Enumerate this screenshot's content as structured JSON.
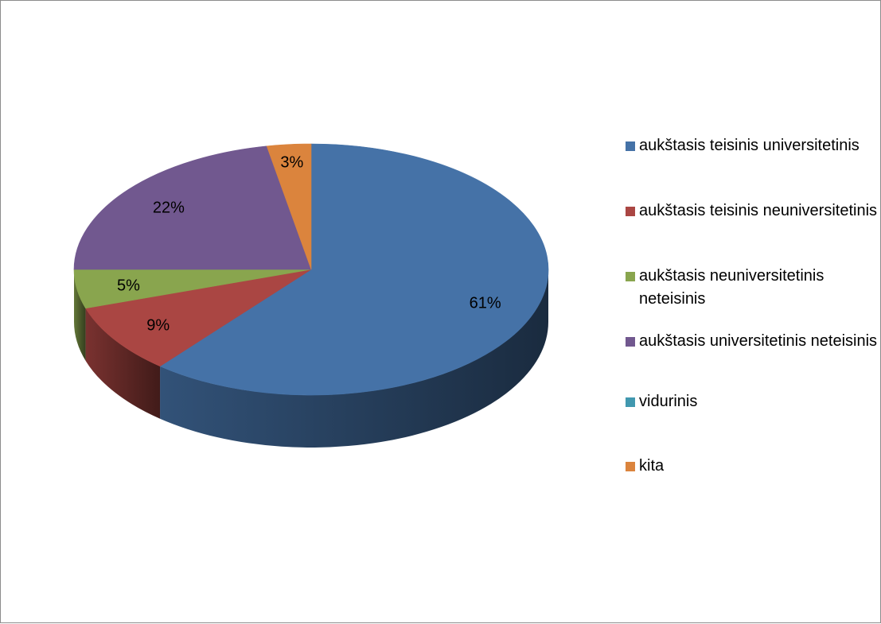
{
  "chart_data": {
    "type": "pie",
    "title": "",
    "three_d": true,
    "legend_position": "right",
    "slices": [
      {
        "label": "aukštasis teisinis universitetinis",
        "value": 61,
        "display": "61%",
        "color": "#4572A7"
      },
      {
        "label": "aukštasis teisinis neuniversitetinis",
        "value": 9,
        "display": "9%",
        "color": "#AA4643"
      },
      {
        "label": "aukštasis neuniversitetinis neteisinis",
        "value": 5,
        "display": "5%",
        "color": "#89A54E"
      },
      {
        "label": "aukštasis universitetinis neteisinis",
        "value": 22,
        "display": "22%",
        "color": "#71588F"
      },
      {
        "label": "vidurinis",
        "value": 0,
        "display": "",
        "color": "#4198AF"
      },
      {
        "label": "kita",
        "value": 3,
        "display": "3%",
        "color": "#DB843D"
      }
    ]
  }
}
